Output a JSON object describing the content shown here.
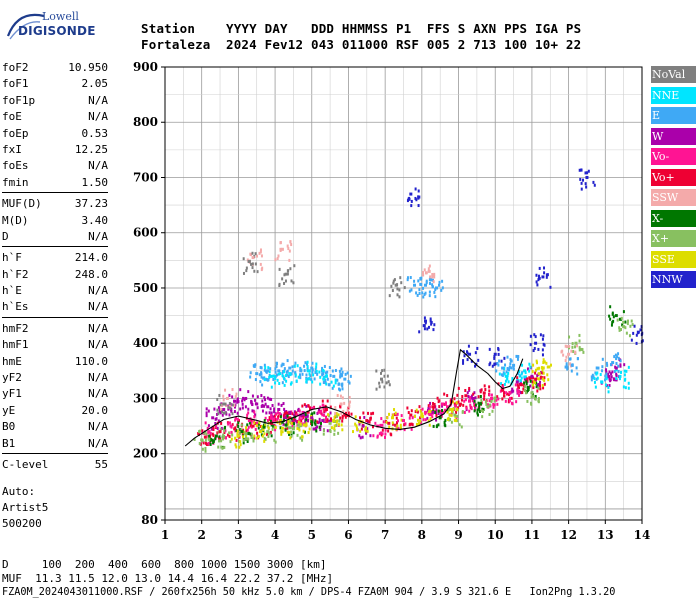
{
  "logo": {
    "brand": "Lowell",
    "name": "DIGISONDE"
  },
  "header": {
    "line1": "Station    YYYY DAY   DDD HHMMSS P1  FFS S AXN PPS IGA PS",
    "line2": "Fortaleza  2024 Fev12 043 011000 RSF 005 2 713 100 10+ 22"
  },
  "params": [
    {
      "k": "foF2",
      "v": "10.950"
    },
    {
      "k": "foF1",
      "v": "2.05"
    },
    {
      "k": "foF1p",
      "v": "N/A"
    },
    {
      "k": "foE",
      "v": "N/A"
    },
    {
      "k": "foEp",
      "v": "0.53"
    },
    {
      "k": "fxI",
      "v": "12.25"
    },
    {
      "k": "foEs",
      "v": "N/A"
    },
    {
      "k": "fmin",
      "v": "1.50"
    },
    {
      "sep": true
    },
    {
      "k": "MUF(D)",
      "v": "37.23"
    },
    {
      "k": "M(D)",
      "v": "3.40"
    },
    {
      "k": "D",
      "v": "N/A"
    },
    {
      "sep": true
    },
    {
      "k": "h`F",
      "v": "214.0"
    },
    {
      "k": "h`F2",
      "v": "248.0"
    },
    {
      "k": "h`E",
      "v": "N/A"
    },
    {
      "k": "h`Es",
      "v": "N/A"
    },
    {
      "sep": true
    },
    {
      "k": "hmF2",
      "v": "N/A"
    },
    {
      "k": "hmF1",
      "v": "N/A"
    },
    {
      "k": "hmE",
      "v": "110.0"
    },
    {
      "k": "yF2",
      "v": "N/A"
    },
    {
      "k": "yF1",
      "v": "N/A"
    },
    {
      "k": "yE",
      "v": "20.0"
    },
    {
      "k": "B0",
      "v": "N/A"
    },
    {
      "k": "B1",
      "v": "N/A"
    },
    {
      "sep": true
    },
    {
      "k": "C-level",
      "v": "55"
    }
  ],
  "auto": {
    "line1": "Auto:",
    "line2": "Artist5",
    "line3": "500200"
  },
  "legend": [
    {
      "label": "NoVal",
      "color": "#7f7f7f"
    },
    {
      "label": "NNE",
      "color": "#00e5ff"
    },
    {
      "label": "E",
      "color": "#3fa9f5"
    },
    {
      "label": "W",
      "color": "#aa00aa"
    },
    {
      "label": "Vo-",
      "color": "#ff1493"
    },
    {
      "label": "Vo+",
      "color": "#ee0033"
    },
    {
      "label": "SSW",
      "color": "#f4aaaa"
    },
    {
      "label": "X-",
      "color": "#007700"
    },
    {
      "label": "X+",
      "color": "#88c060"
    },
    {
      "label": "SSE",
      "color": "#dddd00"
    },
    {
      "label": "NNW",
      "color": "#2222cc"
    }
  ],
  "footer": {
    "line1": "D     100  200  400  600  800 1000 1500 3000 [km]",
    "line2": "MUF  11.3 11.5 12.0 13.0 14.4 16.4 22.2 37.2 [MHz]",
    "line3": "FZA0M_2024043011000.RSF / 260fx256h 50 kHz 5.0 km / DPS-4 FZA0M 904 / 3.9 S 321.6 E   Ion2Png 1.3.20"
  },
  "chart_data": {
    "type": "scatter",
    "title": "",
    "xlabel": "",
    "ylabel": "",
    "xlim": [
      1,
      14
    ],
    "ylim": [
      80,
      900
    ],
    "x_ticks": [
      1,
      2,
      3,
      4,
      5,
      6,
      7,
      8,
      9,
      10,
      11,
      12,
      13,
      14
    ],
    "y_ticks": [
      80,
      200,
      300,
      400,
      500,
      600,
      700,
      800,
      900
    ],
    "grid": true,
    "legend_position": "right",
    "series": [
      {
        "name": "W",
        "color": "#aa00aa",
        "points": [
          [
            2.3,
            265
          ],
          [
            2.6,
            280
          ],
          [
            2.9,
            295
          ],
          [
            3.2,
            300
          ],
          [
            3.5,
            290
          ],
          [
            3.8,
            285
          ],
          [
            4.1,
            280
          ],
          [
            4.4,
            275
          ],
          [
            4.7,
            270
          ],
          [
            5.0,
            265
          ],
          [
            5.3,
            260
          ],
          [
            6.4,
            250
          ],
          [
            8.3,
            275
          ],
          [
            9.4,
            300
          ],
          [
            10.6,
            330
          ],
          [
            11.0,
            340
          ],
          [
            13.1,
            340
          ],
          [
            13.3,
            355
          ]
        ]
      },
      {
        "name": "E",
        "color": "#3fa9f5",
        "points": [
          [
            3.5,
            345
          ],
          [
            3.8,
            350
          ],
          [
            4.1,
            350
          ],
          [
            4.4,
            355
          ],
          [
            4.7,
            350
          ],
          [
            5.0,
            355
          ],
          [
            5.3,
            345
          ],
          [
            5.6,
            340
          ],
          [
            5.9,
            335
          ],
          [
            7.8,
            505
          ],
          [
            8.1,
            505
          ],
          [
            8.4,
            500
          ],
          [
            10.2,
            355
          ],
          [
            10.5,
            360
          ],
          [
            12.1,
            360
          ],
          [
            12.8,
            355
          ],
          [
            13.2,
            365
          ]
        ]
      },
      {
        "name": "NNE",
        "color": "#00e5ff",
        "points": [
          [
            3.9,
            340
          ],
          [
            4.4,
            345
          ],
          [
            4.9,
            350
          ],
          [
            5.4,
            340
          ],
          [
            10.3,
            340
          ],
          [
            10.8,
            350
          ],
          [
            12.9,
            330
          ],
          [
            13.4,
            340
          ]
        ]
      },
      {
        "name": "Vo+",
        "color": "#ee0033",
        "points": [
          [
            2.1,
            230
          ],
          [
            2.5,
            240
          ],
          [
            2.9,
            245
          ],
          [
            3.4,
            250
          ],
          [
            3.9,
            255
          ],
          [
            4.4,
            265
          ],
          [
            4.9,
            275
          ],
          [
            5.4,
            280
          ],
          [
            5.9,
            270
          ],
          [
            6.5,
            260
          ],
          [
            7.1,
            255
          ],
          [
            7.7,
            270
          ],
          [
            8.3,
            285
          ],
          [
            8.8,
            295
          ],
          [
            9.2,
            305
          ],
          [
            9.7,
            310
          ],
          [
            10.2,
            315
          ],
          [
            10.7,
            325
          ],
          [
            11.1,
            335
          ]
        ]
      },
      {
        "name": "Vo-",
        "color": "#ff1493",
        "points": [
          [
            2.2,
            240
          ],
          [
            2.8,
            250
          ],
          [
            3.3,
            260
          ],
          [
            3.9,
            265
          ],
          [
            4.6,
            270
          ],
          [
            5.2,
            275
          ],
          [
            6.8,
            250
          ],
          [
            7.5,
            260
          ],
          [
            8.1,
            275
          ],
          [
            8.7,
            285
          ],
          [
            9.3,
            295
          ],
          [
            9.9,
            300
          ],
          [
            10.4,
            310
          ]
        ]
      },
      {
        "name": "X-",
        "color": "#007700",
        "points": [
          [
            2.4,
            232
          ],
          [
            3.1,
            240
          ],
          [
            3.7,
            248
          ],
          [
            4.3,
            252
          ],
          [
            5.0,
            258
          ],
          [
            8.5,
            265
          ],
          [
            9.6,
            290
          ],
          [
            10.9,
            320
          ],
          [
            13.3,
            450
          ]
        ]
      },
      {
        "name": "X+",
        "color": "#88c060",
        "points": [
          [
            2.0,
            225
          ],
          [
            2.6,
            230
          ],
          [
            3.2,
            236
          ],
          [
            3.8,
            240
          ],
          [
            4.5,
            245
          ],
          [
            5.5,
            255
          ],
          [
            8.9,
            270
          ],
          [
            9.8,
            285
          ],
          [
            11.0,
            310
          ],
          [
            12.2,
            400
          ],
          [
            13.5,
            430
          ]
        ]
      },
      {
        "name": "SSE",
        "color": "#dddd00",
        "points": [
          [
            3.0,
            232
          ],
          [
            3.6,
            240
          ],
          [
            4.2,
            246
          ],
          [
            4.8,
            252
          ],
          [
            5.6,
            260
          ],
          [
            6.3,
            258
          ],
          [
            7.2,
            265
          ],
          [
            8.0,
            272
          ],
          [
            8.8,
            280
          ],
          [
            11.2,
            345
          ],
          [
            11.3,
            355
          ]
        ]
      },
      {
        "name": "SSW",
        "color": "#f4aaaa",
        "points": [
          [
            3.4,
            555
          ],
          [
            4.2,
            570
          ],
          [
            8.2,
            530
          ],
          [
            2.7,
            300
          ],
          [
            5.8,
            290
          ],
          [
            12.0,
            380
          ]
        ]
      },
      {
        "name": "NNW",
        "color": "#2222cc",
        "points": [
          [
            7.7,
            670
          ],
          [
            12.5,
            700
          ],
          [
            11.3,
            520
          ],
          [
            8.1,
            440
          ],
          [
            9.3,
            380
          ],
          [
            10.0,
            380
          ],
          [
            11.1,
            400
          ],
          [
            13.9,
            420
          ]
        ]
      },
      {
        "name": "NoVal",
        "color": "#7f7f7f",
        "points": [
          [
            3.3,
            548
          ],
          [
            4.3,
            525
          ],
          [
            7.3,
            505
          ],
          [
            2.6,
            290
          ],
          [
            6.9,
            335
          ]
        ]
      }
    ],
    "trace": {
      "color": "#000000",
      "points": [
        [
          1.55,
          214
        ],
        [
          1.8,
          228
        ],
        [
          2.2,
          245
        ],
        [
          2.6,
          262
        ],
        [
          3.0,
          268
        ],
        [
          3.4,
          262
        ],
        [
          3.8,
          255
        ],
        [
          4.2,
          258
        ],
        [
          4.6,
          268
        ],
        [
          5.0,
          280
        ],
        [
          5.4,
          285
        ],
        [
          5.8,
          276
        ],
        [
          6.2,
          262
        ],
        [
          6.6,
          252
        ],
        [
          7.0,
          246
        ],
        [
          7.4,
          244
        ],
        [
          7.8,
          248
        ],
        [
          8.2,
          258
        ],
        [
          8.6,
          272
        ],
        [
          8.8,
          290
        ],
        [
          8.95,
          350
        ],
        [
          9.05,
          388
        ],
        [
          9.2,
          380
        ],
        [
          9.5,
          360
        ],
        [
          9.8,
          345
        ],
        [
          10.0,
          330
        ],
        [
          10.2,
          318
        ],
        [
          10.4,
          322
        ],
        [
          10.6,
          345
        ],
        [
          10.75,
          372
        ]
      ]
    }
  }
}
